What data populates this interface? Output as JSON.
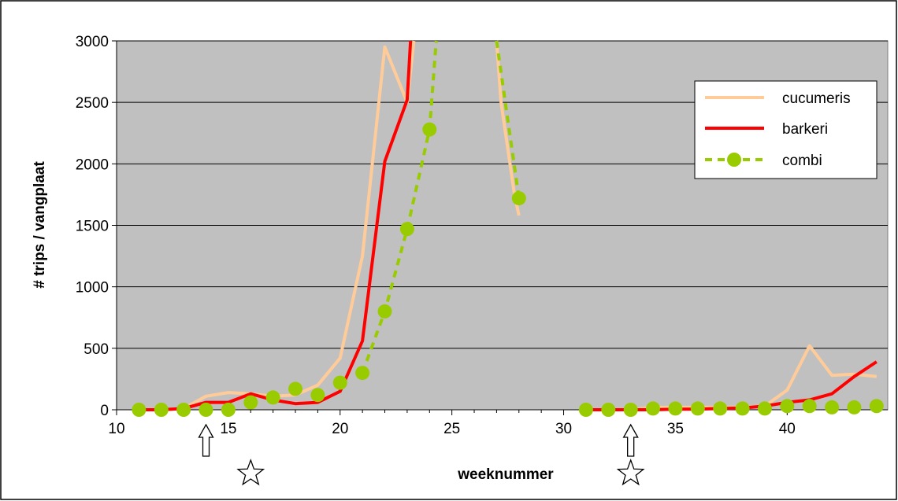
{
  "chart_data": {
    "type": "line",
    "xlabel": "weeknummer",
    "ylabel": "# trips / vangplaat",
    "xlim": [
      10,
      44.5
    ],
    "ylim": [
      0,
      3000
    ],
    "xticks": [
      10,
      15,
      20,
      25,
      30,
      35,
      40
    ],
    "yticks": [
      0,
      500,
      1000,
      1500,
      2000,
      2500,
      3000
    ],
    "grid": "horizontal",
    "background": "#c0c0c0",
    "legend_position": "top-right",
    "series": [
      {
        "name": "cucumeris",
        "color": "#ffcc99",
        "style": "solid",
        "segments": [
          [
            [
              11,
              0
            ],
            [
              12,
              0
            ],
            [
              13,
              10
            ],
            [
              14,
              110
            ],
            [
              15,
              140
            ],
            [
              16,
              130
            ],
            [
              17,
              110
            ],
            [
              18,
              120
            ],
            [
              19,
              200
            ],
            [
              20,
              420
            ],
            [
              21,
              1250
            ],
            [
              22,
              2950
            ],
            [
              23,
              2500
            ],
            [
              23.3,
              3000
            ]
          ],
          [
            [
              27,
              3000
            ],
            [
              27.2,
              2500
            ],
            [
              27.8,
              1750
            ],
            [
              28,
              1580
            ]
          ],
          [
            [
              31,
              0
            ],
            [
              32,
              0
            ],
            [
              33,
              0
            ],
            [
              34,
              20
            ],
            [
              35,
              20
            ],
            [
              36,
              20
            ],
            [
              37,
              20
            ],
            [
              38,
              20
            ],
            [
              39,
              30
            ],
            [
              40,
              160
            ],
            [
              41,
              520
            ],
            [
              42,
              280
            ],
            [
              43,
              290
            ],
            [
              44,
              270
            ]
          ]
        ]
      },
      {
        "name": "barkeri",
        "color": "#ff0000",
        "style": "solid",
        "segments": [
          [
            [
              11,
              0
            ],
            [
              12,
              0
            ],
            [
              13,
              10
            ],
            [
              14,
              60
            ],
            [
              15,
              60
            ],
            [
              16,
              130
            ],
            [
              17,
              80
            ],
            [
              18,
              50
            ],
            [
              19,
              60
            ],
            [
              20,
              150
            ],
            [
              21,
              560
            ],
            [
              22,
              2020
            ],
            [
              23,
              2520
            ],
            [
              23.15,
              3000
            ]
          ],
          [
            [
              31,
              0
            ],
            [
              32,
              0
            ],
            [
              33,
              0
            ],
            [
              34,
              0
            ],
            [
              35,
              5
            ],
            [
              36,
              5
            ],
            [
              37,
              10
            ],
            [
              38,
              15
            ],
            [
              39,
              30
            ],
            [
              40,
              60
            ],
            [
              41,
              80
            ],
            [
              42,
              130
            ],
            [
              43,
              270
            ],
            [
              44,
              390
            ]
          ]
        ]
      },
      {
        "name": "combi",
        "color": "#99cc00",
        "style": "dashed-dots",
        "line_segments": [
          [
            [
              21,
              300
            ],
            [
              22,
              800
            ],
            [
              23,
              1470
            ],
            [
              24,
              2280
            ],
            [
              24.3,
              3000
            ]
          ],
          [
            [
              27,
              3000
            ],
            [
              28,
              1720
            ]
          ]
        ],
        "points": [
          [
            11,
            0
          ],
          [
            12,
            0
          ],
          [
            13,
            0
          ],
          [
            14,
            0
          ],
          [
            15,
            0
          ],
          [
            16,
            60
          ],
          [
            17,
            100
          ],
          [
            18,
            170
          ],
          [
            19,
            120
          ],
          [
            20,
            220
          ],
          [
            21,
            300
          ],
          [
            22,
            800
          ],
          [
            23,
            1470
          ],
          [
            24,
            2280
          ],
          [
            28,
            1720
          ],
          [
            31,
            0
          ],
          [
            32,
            0
          ],
          [
            33,
            0
          ],
          [
            34,
            10
          ],
          [
            35,
            10
          ],
          [
            36,
            10
          ],
          [
            37,
            10
          ],
          [
            38,
            10
          ],
          [
            39,
            10
          ],
          [
            40,
            30
          ],
          [
            41,
            30
          ],
          [
            42,
            20
          ],
          [
            43,
            20
          ],
          [
            44,
            30
          ]
        ]
      }
    ],
    "annotations": [
      {
        "type": "arrow-up",
        "x": 14
      },
      {
        "type": "arrow-up",
        "x": 33
      },
      {
        "type": "star",
        "x": 16
      },
      {
        "type": "star",
        "x": 33
      }
    ]
  }
}
